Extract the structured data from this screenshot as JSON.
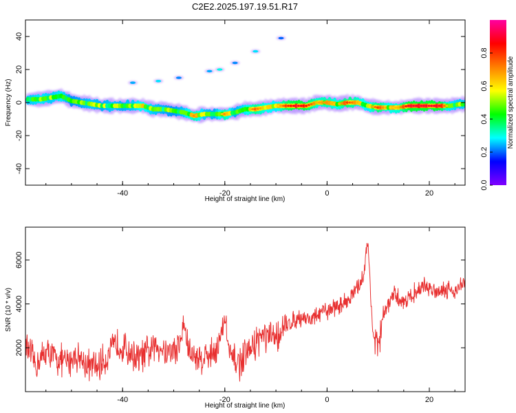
{
  "title": "C2E2.2025.197.19.51.R17",
  "chart_data": [
    {
      "type": "heatmap",
      "xlabel": "Height of straight line (km)",
      "ylabel": "Frequency (Hz)",
      "xlim": [
        -59,
        27
      ],
      "ylim": [
        -50,
        50
      ],
      "x_ticks": [
        -40,
        -20,
        0,
        20
      ],
      "y_ticks": [
        -40,
        -20,
        0,
        20,
        40
      ],
      "x_tick_labels": [
        "-40",
        "-20",
        "0",
        "20"
      ],
      "y_tick_labels": [
        "-40",
        "-20",
        "0",
        "20",
        "40"
      ],
      "colorbar": {
        "label": "Normalized spectral amplitude",
        "range": [
          0,
          1
        ],
        "ticks": [
          0.0,
          0.2,
          0.4,
          0.6,
          0.8
        ],
        "tick_labels": [
          "0.0",
          "0.2",
          "0.4",
          "0.6",
          "0.8"
        ],
        "colormap": [
          "#8000ff",
          "#0000ff",
          "#00ffff",
          "#00ff00",
          "#ffff00",
          "#ff8000",
          "#ff0000",
          "#ff00a0"
        ]
      },
      "main_band": [
        {
          "x": -58,
          "y": 2,
          "a": 0.45
        },
        {
          "x": -56,
          "y": 2,
          "a": 0.5
        },
        {
          "x": -54,
          "y": 3,
          "a": 0.45
        },
        {
          "x": -52,
          "y": 4,
          "a": 0.5
        },
        {
          "x": -50,
          "y": 1,
          "a": 0.35
        },
        {
          "x": -48,
          "y": 0,
          "a": 0.4
        },
        {
          "x": -46,
          "y": -1,
          "a": 0.45
        },
        {
          "x": -44,
          "y": -2,
          "a": 0.4
        },
        {
          "x": -42,
          "y": -2,
          "a": 0.45
        },
        {
          "x": -40,
          "y": -2,
          "a": 0.4
        },
        {
          "x": -38,
          "y": -2,
          "a": 0.45
        },
        {
          "x": -36,
          "y": -2,
          "a": 0.55
        },
        {
          "x": -34,
          "y": -4,
          "a": 0.45
        },
        {
          "x": -32,
          "y": -4,
          "a": 0.4
        },
        {
          "x": -30,
          "y": -5,
          "a": 0.35
        },
        {
          "x": -28,
          "y": -6,
          "a": 0.45
        },
        {
          "x": -26,
          "y": -8,
          "a": 0.65
        },
        {
          "x": -24,
          "y": -7,
          "a": 0.45
        },
        {
          "x": -22,
          "y": -7,
          "a": 0.4
        },
        {
          "x": -20,
          "y": -7,
          "a": 0.65
        },
        {
          "x": -18,
          "y": -6,
          "a": 0.4
        },
        {
          "x": -16,
          "y": -4,
          "a": 0.5
        },
        {
          "x": -14,
          "y": -4,
          "a": 0.7
        },
        {
          "x": -12,
          "y": -3,
          "a": 0.55
        },
        {
          "x": -10,
          "y": -2,
          "a": 0.5
        },
        {
          "x": -8,
          "y": -2,
          "a": 0.75
        },
        {
          "x": -6,
          "y": -2,
          "a": 0.85
        },
        {
          "x": -4,
          "y": -2,
          "a": 0.8
        },
        {
          "x": -2,
          "y": 0,
          "a": 0.6
        },
        {
          "x": 0,
          "y": 0,
          "a": 0.65
        },
        {
          "x": 2,
          "y": -1,
          "a": 0.55
        },
        {
          "x": 4,
          "y": 0,
          "a": 0.75
        },
        {
          "x": 6,
          "y": 0,
          "a": 0.6
        },
        {
          "x": 8,
          "y": -2,
          "a": 0.5
        },
        {
          "x": 10,
          "y": -3,
          "a": 0.75
        },
        {
          "x": 12,
          "y": -3,
          "a": 0.55
        },
        {
          "x": 14,
          "y": -3,
          "a": 0.6
        },
        {
          "x": 16,
          "y": -2,
          "a": 0.85
        },
        {
          "x": 18,
          "y": -2,
          "a": 0.85
        },
        {
          "x": 20,
          "y": -2,
          "a": 0.85
        },
        {
          "x": 22,
          "y": -2,
          "a": 0.85
        },
        {
          "x": 24,
          "y": -2,
          "a": 0.5
        },
        {
          "x": 26,
          "y": -1,
          "a": 0.45
        }
      ],
      "faint_features": [
        {
          "x": -38,
          "y": 12,
          "a": 0.12
        },
        {
          "x": -33,
          "y": 13,
          "a": 0.15
        },
        {
          "x": -29,
          "y": 15,
          "a": 0.1
        },
        {
          "x": -23,
          "y": 19,
          "a": 0.12
        },
        {
          "x": -21,
          "y": 20,
          "a": 0.18
        },
        {
          "x": -18,
          "y": 24,
          "a": 0.1
        },
        {
          "x": -14,
          "y": 31,
          "a": 0.15
        },
        {
          "x": -9,
          "y": 39,
          "a": 0.08
        }
      ]
    },
    {
      "type": "line",
      "xlabel": "Height of straight line (km)",
      "ylabel": "SNR (10 * v/v)",
      "xlim": [
        -59,
        27
      ],
      "ylim": [
        0,
        7500
      ],
      "x_ticks": [
        -40,
        -20,
        0,
        20
      ],
      "y_ticks": [
        2000,
        4000,
        6000
      ],
      "x_tick_labels": [
        "-40",
        "-20",
        "0",
        "20"
      ],
      "y_tick_labels": [
        "2000",
        "4000",
        "6000"
      ],
      "line_color": "#e83030",
      "x": [
        -59,
        -57,
        -55,
        -53,
        -51,
        -49,
        -47,
        -45,
        -43,
        -41,
        -39,
        -37,
        -35,
        -33,
        -31,
        -29,
        -28,
        -27,
        -25,
        -23,
        -21,
        -20,
        -19,
        -17,
        -15,
        -13,
        -11,
        -9,
        -7,
        -5,
        -3,
        -1,
        1,
        3,
        5,
        6,
        7,
        8,
        9,
        10,
        11,
        13,
        15,
        17,
        19,
        21,
        23,
        25,
        27
      ],
      "y": [
        2100,
        1200,
        1800,
        1500,
        1300,
        1700,
        1200,
        1100,
        1600,
        2200,
        1900,
        1500,
        1800,
        2100,
        1800,
        2000,
        3100,
        1800,
        1500,
        1700,
        2200,
        3400,
        1500,
        1300,
        1900,
        2500,
        2400,
        2700,
        3200,
        3400,
        3300,
        3600,
        3800,
        4000,
        4400,
        4700,
        5200,
        6800,
        2500,
        2000,
        3500,
        4400,
        4100,
        4500,
        4800,
        4600,
        4700,
        4600,
        5000
      ]
    }
  ]
}
